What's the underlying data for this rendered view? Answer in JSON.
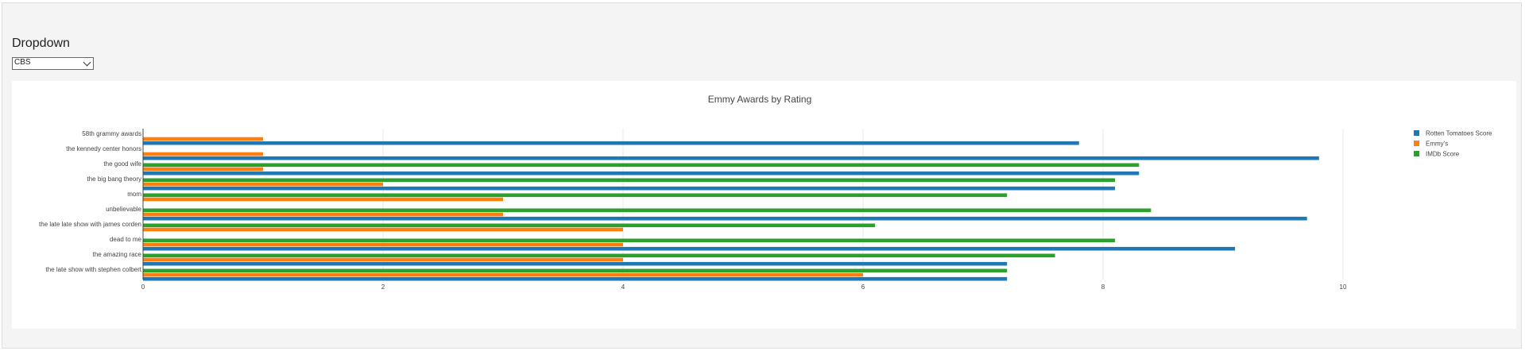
{
  "dropdown": {
    "title": "Dropdown",
    "selected": "CBS"
  },
  "colors": {
    "rotten": "#1f77b4",
    "emmy": "#ff7f0e",
    "imdb": "#2ca02c"
  },
  "chart_data": {
    "type": "bar",
    "orientation": "horizontal",
    "title": "Emmy Awards by Rating",
    "categories": [
      "the late show with stephen colbert",
      "the amazing race",
      "dead to me",
      "the late late show with james corden",
      "unbelievable",
      "mom",
      "the big bang theory",
      "the good wife",
      "the kennedy center honors",
      "58th grammy awards"
    ],
    "series": [
      {
        "name": "Rotten Tomatoes Score",
        "values": [
          7.2,
          7.2,
          9.1,
          null,
          9.7,
          null,
          8.1,
          8.3,
          9.8,
          7.8
        ]
      },
      {
        "name": "Emmy's",
        "values": [
          6,
          4,
          4,
          4,
          3,
          3,
          2,
          1,
          1,
          1
        ]
      },
      {
        "name": "IMDb Score",
        "values": [
          7.2,
          7.6,
          8.1,
          6.1,
          8.4,
          7.2,
          8.1,
          8.3,
          null,
          null
        ]
      }
    ],
    "x_ticks": [
      0,
      2,
      4,
      6,
      8,
      10
    ],
    "xlim": [
      0,
      11.6
    ],
    "legend_position": "top-right",
    "grid": true
  }
}
